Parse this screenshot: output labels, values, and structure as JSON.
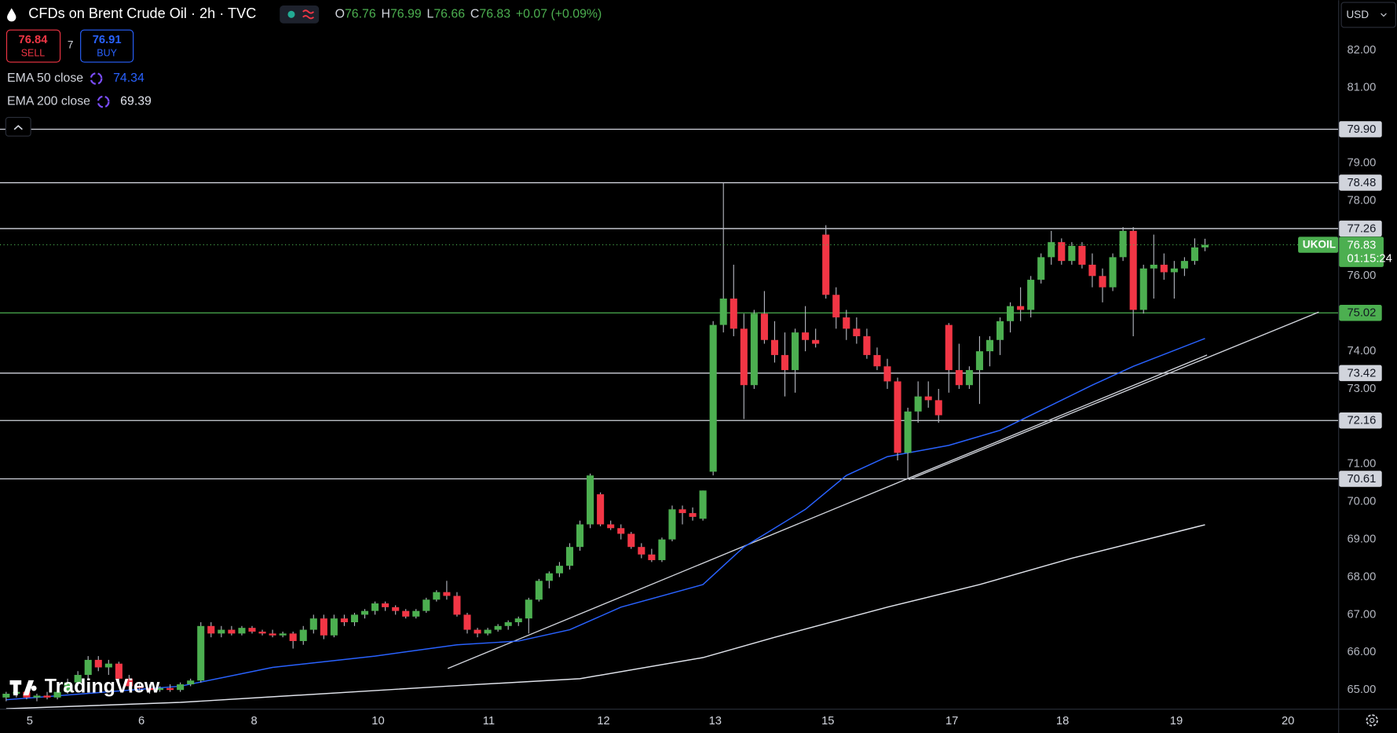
{
  "header": {
    "symbol": "CFDs on Brent Crude Oil · 2h · TVC",
    "ohlc_labels": [
      "O",
      "H",
      "L",
      "C"
    ],
    "change": "+0.07 (+0.09%)"
  },
  "trade": {
    "sell": {
      "price": 76.84,
      "label": "SELL"
    },
    "spread": 7,
    "buy": {
      "price": 76.91,
      "label": "BUY"
    }
  },
  "currency": "USD",
  "branding": "TradingView",
  "chart_data": {
    "type": "candlestick",
    "up_color": "#4caf50",
    "down_color": "#f23645",
    "wick_color": "#b2b5be",
    "xlim": [
      -0.6,
      130
    ],
    "ylim": [
      64.5,
      83.33
    ],
    "xticks": [
      {
        "value": 2.3,
        "label": "5"
      },
      {
        "value": 13.2,
        "label": "6"
      },
      {
        "value": 24.2,
        "label": "8"
      },
      {
        "value": 36.3,
        "label": "10"
      },
      {
        "value": 47.1,
        "label": "11"
      },
      {
        "value": 58.3,
        "label": "12"
      },
      {
        "value": 69.2,
        "label": "13"
      },
      {
        "value": 80.2,
        "label": "15"
      },
      {
        "value": 92.3,
        "label": "17"
      },
      {
        "value": 103.1,
        "label": "18"
      },
      {
        "value": 114.2,
        "label": "19"
      },
      {
        "value": 125.1,
        "label": "20"
      }
    ],
    "yticks": [
      {
        "value": 82,
        "label": "82.00"
      },
      {
        "value": 81,
        "label": "81.00"
      },
      {
        "value": 79,
        "label": "79.00"
      },
      {
        "value": 78,
        "label": "78.00"
      },
      {
        "value": 76,
        "label": "76.00"
      },
      {
        "value": 74,
        "label": "74.00"
      },
      {
        "value": 73,
        "label": "73.00"
      },
      {
        "value": 71,
        "label": "71.00"
      },
      {
        "value": 70,
        "label": "70.00"
      },
      {
        "value": 69,
        "label": "69.00"
      },
      {
        "value": 68,
        "label": "68.00"
      },
      {
        "value": 67,
        "label": "67.00"
      },
      {
        "value": 66,
        "label": "66.00"
      },
      {
        "value": 65,
        "label": "65.00"
      }
    ],
    "x": [
      0,
      1,
      2,
      3,
      4,
      5,
      6,
      7,
      8,
      9,
      10,
      11,
      12,
      13,
      14,
      15,
      16,
      17,
      18,
      19,
      20,
      21,
      22,
      23,
      24,
      25,
      26,
      27,
      28,
      29,
      30,
      31,
      32,
      33,
      34,
      35,
      36,
      37,
      38,
      39,
      40,
      41,
      42,
      43,
      44,
      45,
      46,
      47,
      48,
      49,
      50,
      51,
      52,
      53,
      54,
      55,
      56,
      57,
      58,
      59,
      60,
      61,
      62,
      63,
      64,
      65,
      66,
      67,
      68,
      69,
      70,
      71,
      72,
      73,
      74,
      75,
      76,
      77,
      78,
      79,
      80,
      81,
      82,
      83,
      84,
      85,
      86,
      87,
      88,
      89,
      90,
      91,
      92,
      93,
      94,
      95,
      96,
      97,
      98,
      99,
      100,
      101,
      102,
      103,
      104,
      105,
      106,
      107,
      108,
      109,
      110,
      111,
      112,
      113,
      114,
      115,
      116,
      117
    ],
    "open": [
      64.8,
      64.9,
      64.95,
      64.8,
      64.85,
      64.8,
      64.95,
      65.2,
      65.4,
      65.8,
      65.6,
      65.7,
      65.3,
      65.1,
      65.05,
      65.0,
      65.05,
      65.0,
      65.15,
      65.25,
      66.7,
      66.5,
      66.6,
      66.5,
      66.65,
      66.55,
      66.5,
      66.45,
      66.5,
      66.3,
      66.6,
      66.9,
      66.45,
      66.9,
      66.8,
      67.0,
      67.1,
      67.3,
      67.2,
      67.1,
      66.95,
      67.1,
      67.4,
      67.6,
      67.5,
      67.0,
      66.6,
      66.5,
      66.6,
      66.7,
      66.8,
      66.9,
      67.4,
      67.9,
      68.1,
      68.3,
      68.8,
      69.4,
      70.2,
      69.4,
      69.3,
      69.15,
      68.8,
      68.6,
      68.45,
      69.0,
      69.8,
      69.7,
      69.55,
      70.8,
      74.7,
      75.4,
      74.6,
      73.1,
      75.0,
      74.3,
      73.9,
      73.5,
      74.5,
      74.3,
      77.1,
      75.5,
      74.9,
      74.6,
      74.4,
      73.9,
      73.6,
      73.2,
      71.3,
      72.4,
      72.8,
      72.7,
      74.7,
      73.5,
      73.1,
      73.5,
      74.0,
      74.3,
      74.8,
      75.2,
      75.1,
      75.9,
      76.5,
      76.9,
      76.4,
      76.8,
      76.3,
      76.0,
      75.7,
      76.5,
      77.2,
      75.1,
      76.2,
      76.3,
      76.1,
      76.2,
      76.4,
      76.76
    ],
    "high": [
      64.95,
      65.05,
      65.0,
      64.9,
      64.95,
      65.0,
      65.3,
      65.5,
      65.9,
      65.9,
      65.8,
      65.75,
      65.4,
      65.2,
      65.15,
      65.1,
      65.15,
      65.2,
      65.3,
      66.8,
      66.8,
      66.7,
      66.7,
      66.7,
      66.7,
      66.6,
      66.6,
      66.55,
      66.55,
      66.7,
      67.0,
      67.0,
      67.0,
      67.0,
      67.05,
      67.15,
      67.35,
      67.35,
      67.25,
      67.15,
      67.15,
      67.45,
      67.65,
      67.9,
      67.6,
      67.05,
      66.65,
      66.65,
      66.75,
      66.85,
      66.95,
      67.45,
      67.95,
      68.15,
      68.4,
      68.9,
      69.5,
      70.75,
      70.25,
      69.5,
      69.4,
      69.2,
      68.9,
      68.75,
      69.05,
      69.9,
      69.9,
      69.85,
      70.3,
      74.8,
      78.48,
      76.3,
      75.0,
      75.1,
      75.6,
      74.8,
      74.5,
      74.6,
      75.2,
      74.6,
      77.35,
      75.7,
      75.1,
      74.9,
      74.6,
      74.1,
      73.8,
      73.3,
      72.5,
      73.2,
      73.2,
      73.0,
      74.75,
      74.2,
      73.6,
      74.4,
      74.4,
      74.9,
      75.3,
      75.7,
      76.0,
      76.6,
      77.2,
      77.0,
      76.9,
      76.9,
      76.6,
      76.2,
      76.6,
      77.3,
      77.3,
      76.3,
      77.1,
      76.6,
      76.4,
      76.5,
      77.0,
      76.99
    ],
    "low": [
      64.7,
      64.8,
      64.75,
      64.7,
      64.75,
      64.75,
      64.9,
      65.1,
      65.3,
      65.5,
      65.4,
      65.2,
      65.0,
      64.95,
      64.9,
      64.95,
      64.95,
      64.95,
      65.1,
      65.2,
      66.4,
      66.4,
      66.45,
      66.45,
      66.5,
      66.45,
      66.4,
      66.4,
      66.1,
      66.2,
      66.5,
      66.35,
      66.4,
      66.7,
      66.7,
      66.9,
      67.0,
      67.1,
      67.0,
      66.9,
      66.9,
      67.05,
      67.35,
      67.4,
      66.95,
      66.5,
      66.4,
      66.45,
      66.55,
      66.6,
      66.7,
      66.5,
      67.35,
      67.7,
      68.0,
      68.2,
      68.7,
      69.3,
      69.35,
      69.25,
      69.0,
      68.75,
      68.5,
      68.4,
      68.4,
      68.95,
      69.4,
      69.5,
      69.5,
      70.7,
      74.5,
      74.4,
      72.2,
      73.0,
      74.2,
      73.7,
      72.8,
      72.9,
      74.0,
      74.1,
      75.4,
      74.6,
      74.3,
      74.2,
      73.8,
      73.5,
      73.0,
      71.1,
      70.61,
      72.1,
      72.5,
      72.1,
      72.9,
      73.0,
      73.0,
      72.6,
      73.6,
      73.9,
      74.5,
      74.8,
      74.9,
      75.8,
      76.3,
      76.3,
      76.3,
      76.2,
      75.7,
      75.3,
      75.6,
      76.4,
      74.4,
      75.0,
      75.4,
      75.9,
      75.4,
      76.0,
      76.3,
      76.66
    ],
    "close": [
      64.9,
      64.95,
      64.8,
      64.85,
      64.8,
      64.95,
      65.2,
      65.4,
      65.8,
      65.6,
      65.7,
      65.3,
      65.1,
      65.05,
      65.0,
      65.05,
      65.0,
      65.15,
      65.25,
      66.7,
      66.5,
      66.6,
      66.5,
      66.65,
      66.55,
      66.5,
      66.45,
      66.5,
      66.3,
      66.6,
      66.9,
      66.45,
      66.9,
      66.8,
      67.0,
      67.1,
      67.3,
      67.2,
      67.1,
      66.95,
      67.1,
      67.4,
      67.6,
      67.5,
      67.0,
      66.6,
      66.5,
      66.6,
      66.7,
      66.8,
      66.9,
      67.4,
      67.9,
      68.1,
      68.3,
      68.8,
      69.4,
      70.7,
      69.4,
      69.3,
      69.15,
      68.8,
      68.6,
      68.45,
      69.0,
      69.8,
      69.7,
      69.6,
      70.3,
      74.7,
      75.4,
      74.6,
      73.1,
      75.0,
      74.3,
      73.9,
      73.5,
      74.5,
      74.3,
      74.2,
      75.5,
      74.9,
      74.6,
      74.4,
      73.9,
      73.6,
      73.2,
      71.3,
      72.4,
      72.8,
      72.7,
      72.3,
      73.5,
      73.1,
      73.5,
      74.0,
      74.3,
      74.8,
      75.2,
      75.1,
      75.9,
      76.5,
      76.9,
      76.4,
      76.8,
      76.3,
      76.0,
      75.7,
      76.5,
      77.2,
      75.1,
      76.2,
      76.3,
      76.1,
      76.2,
      76.4,
      76.76,
      76.83
    ],
    "series": [
      {
        "name": "EMA 50 close",
        "color": "#2962ff",
        "x": [
          0,
          17,
          26,
          36,
          44,
          50,
          55,
          60,
          68,
          72,
          78,
          82,
          86,
          92,
          97,
          100,
          106,
          110,
          117
        ],
        "values": [
          64.74,
          65.1,
          65.6,
          65.9,
          66.2,
          66.3,
          66.6,
          67.2,
          67.8,
          68.8,
          69.8,
          70.7,
          71.2,
          71.5,
          71.9,
          72.3,
          73.1,
          73.6,
          74.34
        ]
      },
      {
        "name": "EMA 200 close",
        "color": "#e0e3eb",
        "x": [
          0,
          17,
          43,
          56,
          68,
          75,
          86,
          95,
          104,
          117
        ],
        "values": [
          64.5,
          64.67,
          65.1,
          65.3,
          65.86,
          66.4,
          67.2,
          67.8,
          68.5,
          69.39
        ]
      }
    ],
    "levels": [
      {
        "value": 79.9,
        "label": "79.90",
        "color": "#d1d4dc"
      },
      {
        "value": 78.48,
        "label": "78.48",
        "color": "#d1d4dc"
      },
      {
        "value": 77.26,
        "label": "77.26",
        "color": "#d1d4dc"
      },
      {
        "value": 75.02,
        "label": "75.02",
        "color": "#4caf50"
      },
      {
        "value": 73.42,
        "label": "73.42",
        "color": "#d1d4dc"
      },
      {
        "value": 72.16,
        "label": "72.16",
        "color": "#d1d4dc"
      },
      {
        "value": 70.61,
        "label": "70.61",
        "color": "#d1d4dc"
      }
    ],
    "trendlines": [
      {
        "color": "#d1d4dc",
        "x": [
          43.1,
          117.2
        ],
        "values": [
          65.57,
          73.9
        ]
      },
      {
        "color": "#d1d4dc",
        "x": [
          88.1,
          128.1
        ],
        "values": [
          70.59,
          75.04
        ]
      }
    ],
    "last_price": {
      "symbol": "UKOIL",
      "countdown": "01:15:24",
      "color": "#4caf50"
    }
  }
}
